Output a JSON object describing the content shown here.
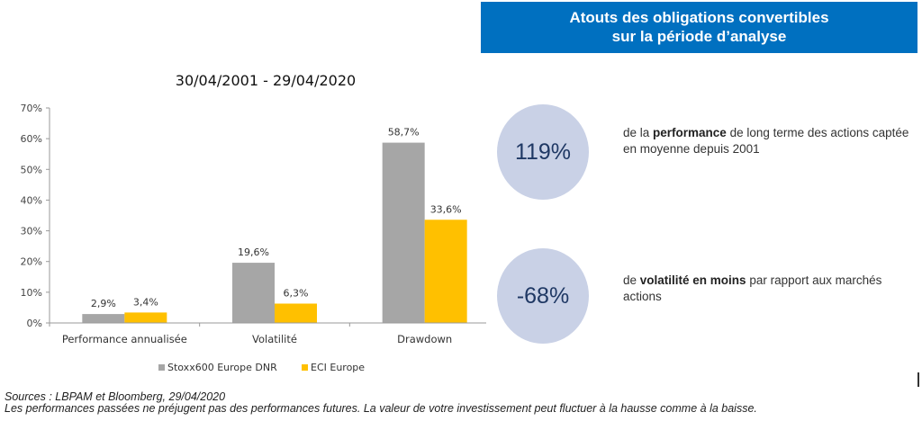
{
  "banner": {
    "line1": "Atouts des obligations convertibles",
    "line2": "sur la période d’analyse",
    "color": "#0070c0"
  },
  "chart_data": {
    "type": "bar",
    "title": "30/04/2001 - 29/04/2020",
    "categories": [
      "Performance annualisée",
      "Volatilité",
      "Drawdown"
    ],
    "series": [
      {
        "name": "Stoxx600 Europe DNR",
        "values": [
          2.9,
          19.6,
          58.7
        ],
        "labels": [
          "2,9%",
          "19,6%",
          "58,7%"
        ],
        "color": "#a6a6a6"
      },
      {
        "name": "ECI Europe",
        "values": [
          3.4,
          6.3,
          33.6
        ],
        "labels": [
          "3,4%",
          "6,3%",
          "33,6%"
        ],
        "color": "#ffc000"
      }
    ],
    "ylim": [
      0,
      70
    ],
    "yticks": [
      0,
      10,
      20,
      30,
      40,
      50,
      60,
      70
    ],
    "ytick_labels": [
      "0%",
      "10%",
      "20%",
      "30%",
      "40%",
      "50%",
      "60%",
      "70%"
    ],
    "grid": false,
    "legend_position": "bottom",
    "xlabel": "",
    "ylabel": ""
  },
  "stats": [
    {
      "value": "119%",
      "text_parts": [
        "de la ",
        "performance",
        " de long terme des actions captée en moyenne depuis 2001"
      ]
    },
    {
      "value": "-68%",
      "text_parts": [
        "de ",
        "volatilité en moins",
        " par rapport aux marchés actions"
      ]
    }
  ],
  "footer": {
    "sources": "Sources : LBPAM et Bloomberg,  29/04/2020",
    "disclaimer": "Les performances passées ne préjugent pas des performances futures. La valeur de votre investissement peut fluctuer à la hausse comme à la baisse."
  }
}
